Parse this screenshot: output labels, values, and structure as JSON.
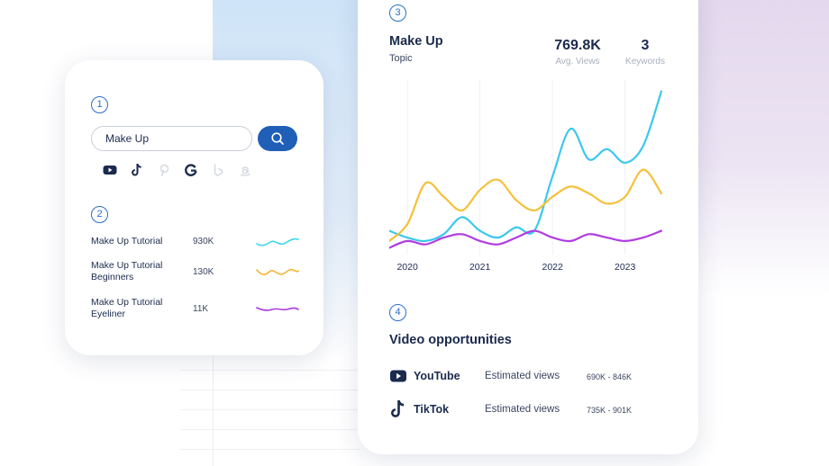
{
  "search": {
    "step": "1",
    "query": "Make Up",
    "platforms": [
      {
        "name": "youtube-icon",
        "active": true
      },
      {
        "name": "tiktok-icon",
        "active": true
      },
      {
        "name": "pinterest-icon",
        "active": false
      },
      {
        "name": "google-icon",
        "active": true
      },
      {
        "name": "bing-icon",
        "active": false
      },
      {
        "name": "amazon-icon",
        "active": false
      }
    ]
  },
  "keywords": {
    "step": "2",
    "items": [
      {
        "label": "Make Up Tutorial",
        "value": "930K",
        "color": "#3dd6e8"
      },
      {
        "label": "Make Up Tutorial Beginners",
        "value": "130K",
        "color": "#f5b533"
      },
      {
        "label": "Make Up Tutorial Eyeliner",
        "value": "11K",
        "color": "#a93bd9"
      }
    ]
  },
  "topic": {
    "step": "3",
    "title": "Make Up",
    "subtitle": "Topic",
    "stats": [
      {
        "value": "769.8K",
        "label": "Avg. Views"
      },
      {
        "value": "3",
        "label": "Keywords"
      }
    ]
  },
  "chart_data": {
    "type": "line",
    "title": "",
    "xlabel": "",
    "ylabel": "",
    "x_ticks": [
      "2020",
      "2021",
      "2022",
      "2023"
    ],
    "x": [
      2019.3,
      2019.55,
      2019.8,
      2020.05,
      2020.3,
      2020.55,
      2020.8,
      2021.05,
      2021.3,
      2021.55,
      2021.8,
      2022.05,
      2022.3,
      2022.55,
      2022.8,
      2023.05
    ],
    "xlim": [
      2019.3,
      2023.15
    ],
    "ylim": [
      0,
      100
    ],
    "grid": true,
    "series": [
      {
        "color": "#3bc8ea",
        "values": [
          14,
          10,
          8,
          12,
          22,
          14,
          10,
          16,
          14,
          46,
          74,
          56,
          62,
          54,
          64,
          96
        ]
      },
      {
        "color": "#f5c03a",
        "values": [
          8,
          18,
          42,
          34,
          26,
          38,
          44,
          32,
          26,
          34,
          40,
          36,
          30,
          34,
          50,
          36
        ]
      },
      {
        "color": "#b03de0",
        "values": [
          4,
          8,
          6,
          10,
          12,
          8,
          6,
          10,
          14,
          10,
          8,
          12,
          10,
          8,
          10,
          14
        ]
      }
    ]
  },
  "opportunities": {
    "step": "4",
    "title": "Video opportunities",
    "rows": [
      {
        "icon": "youtube-icon",
        "name": "YouTube",
        "est_label": "Estimated views",
        "range": "690K - 846K"
      },
      {
        "icon": "tiktok-icon",
        "name": "TikTok",
        "est_label": "Estimated views",
        "range": "735K - 901K"
      }
    ]
  },
  "colors": {
    "accent": "#1f5fb7",
    "text": "#1b2a4e"
  }
}
